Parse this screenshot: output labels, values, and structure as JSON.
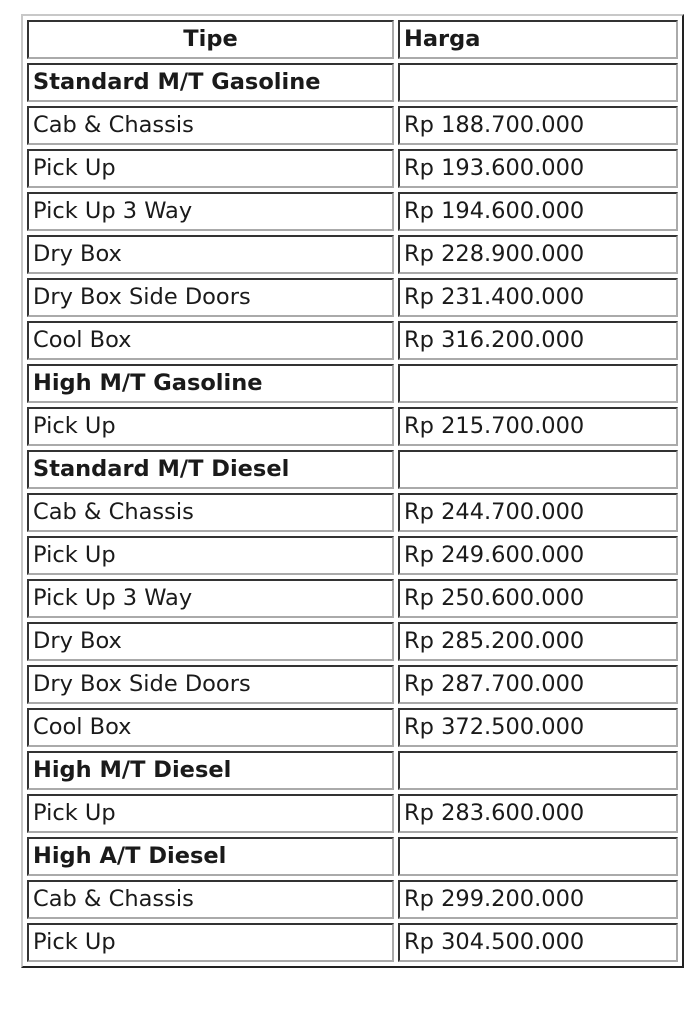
{
  "table": {
    "headers": [
      "Tipe",
      "Harga"
    ],
    "rows": [
      {
        "type": "group",
        "tipe": "Standard M/T Gasoline",
        "harga": ""
      },
      {
        "type": "item",
        "tipe": "Cab & Chassis",
        "harga": "Rp 188.700.000"
      },
      {
        "type": "item",
        "tipe": "Pick Up",
        "harga": "Rp 193.600.000"
      },
      {
        "type": "item",
        "tipe": "Pick Up 3 Way",
        "harga": "Rp 194.600.000"
      },
      {
        "type": "item",
        "tipe": "Dry Box",
        "harga": "Rp 228.900.000"
      },
      {
        "type": "item",
        "tipe": "Dry Box Side Doors",
        "harga": "Rp 231.400.000"
      },
      {
        "type": "item",
        "tipe": "Cool Box",
        "harga": "Rp 316.200.000"
      },
      {
        "type": "group",
        "tipe": "High M/T Gasoline",
        "harga": ""
      },
      {
        "type": "item",
        "tipe": "Pick Up",
        "harga": "Rp 215.700.000"
      },
      {
        "type": "group",
        "tipe": "Standard M/T Diesel",
        "harga": ""
      },
      {
        "type": "item",
        "tipe": "Cab & Chassis",
        "harga": "Rp 244.700.000"
      },
      {
        "type": "item",
        "tipe": "Pick Up",
        "harga": "Rp 249.600.000"
      },
      {
        "type": "item",
        "tipe": "Pick Up 3 Way",
        "harga": "Rp 250.600.000"
      },
      {
        "type": "item",
        "tipe": "Dry Box",
        "harga": "Rp 285.200.000"
      },
      {
        "type": "item",
        "tipe": "Dry Box Side Doors",
        "harga": "Rp 287.700.000"
      },
      {
        "type": "item",
        "tipe": "Cool Box",
        "harga": "Rp 372.500.000"
      },
      {
        "type": "group",
        "tipe": "High M/T Diesel",
        "harga": ""
      },
      {
        "type": "item",
        "tipe": "Pick Up",
        "harga": "Rp 283.600.000"
      },
      {
        "type": "group",
        "tipe": "High A/T Diesel",
        "harga": ""
      },
      {
        "type": "item",
        "tipe": "Cab & Chassis",
        "harga": "Rp 299.200.000"
      },
      {
        "type": "item",
        "tipe": "Pick Up",
        "harga": "Rp 304.500.000"
      }
    ]
  }
}
